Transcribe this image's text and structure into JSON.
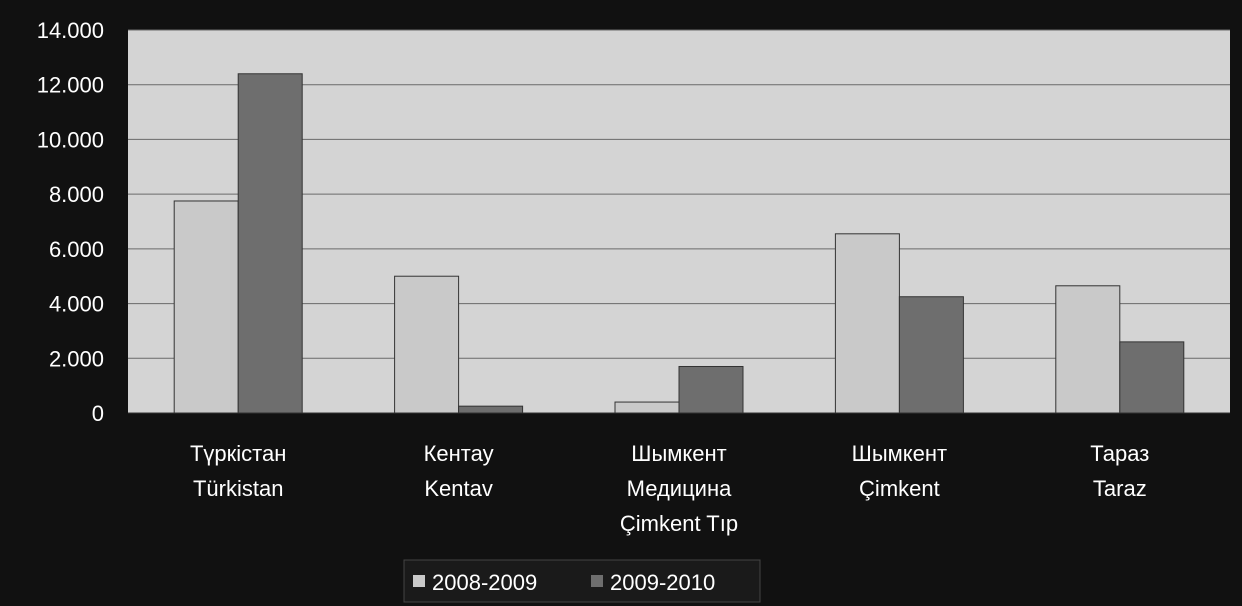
{
  "chart_data": {
    "type": "bar",
    "categories": [
      [
        "Түркістан",
        "Türkistan"
      ],
      [
        "Кентау",
        "Kentav"
      ],
      [
        "Шымкент",
        "Медицина",
        "Çimkent Tıp"
      ],
      [
        "Шымкент",
        "Çimkent"
      ],
      [
        "Тараз",
        "Taraz"
      ]
    ],
    "series": [
      {
        "name": "2008-2009",
        "values": [
          7750,
          5000,
          400,
          6550,
          4650
        ]
      },
      {
        "name": "2009-2010",
        "values": [
          12400,
          250,
          1700,
          4250,
          2600
        ]
      }
    ],
    "ylim": [
      0,
      14000
    ],
    "yticks": [
      0,
      2000,
      4000,
      6000,
      8000,
      10000,
      12000,
      14000
    ],
    "ytick_labels": [
      "0",
      "2.000",
      "4.000",
      "6.000",
      "8.000",
      "10.000",
      "12.000",
      "14.000"
    ],
    "grid": true,
    "legend_position": "bottom",
    "colors": {
      "series": [
        "#c9c9c9",
        "#6e6e6e"
      ],
      "plot_bg": "#d4d4d4",
      "frame_bg": "#111111",
      "text": "#ffffff",
      "grid": "#6a6a6a"
    }
  }
}
